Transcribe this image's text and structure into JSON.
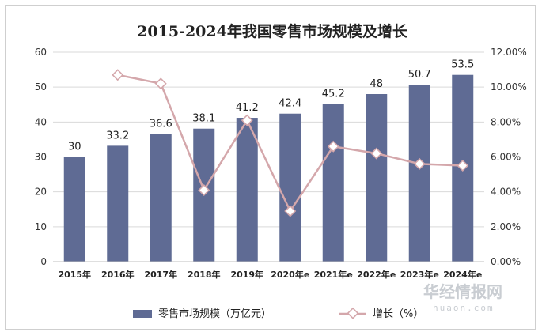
{
  "chart_data": {
    "type": "bar",
    "title": "2015-2024年我国零售市场规模及增长",
    "categories": [
      "2015年",
      "2016年",
      "2017年",
      "2018年",
      "2019年",
      "2020年e",
      "2021年e",
      "2022年e",
      "2023年e",
      "2024年e"
    ],
    "series": [
      {
        "name": "零售市场规模（万亿元）",
        "type": "bar",
        "axis": "left",
        "color": "#5f6b94",
        "values": [
          30,
          33.2,
          36.6,
          38.1,
          41.2,
          42.4,
          45.2,
          48,
          50.7,
          53.5
        ],
        "labels": [
          "30",
          "33.2",
          "36.6",
          "38.1",
          "41.2",
          "42.4",
          "45.2",
          "48",
          "50.7",
          "53.5"
        ]
      },
      {
        "name": "增长（%）",
        "type": "line",
        "axis": "right",
        "color": "#d4a7ab",
        "values": [
          null,
          10.7,
          10.2,
          4.1,
          8.1,
          2.9,
          6.6,
          6.2,
          5.6,
          5.5
        ]
      }
    ],
    "y_left": {
      "min": 0,
      "max": 60,
      "ticks": [
        "0",
        "10",
        "20",
        "30",
        "40",
        "50",
        "60"
      ]
    },
    "y_right": {
      "min": 0,
      "max": 12,
      "ticks": [
        "0.00%",
        "2.00%",
        "4.00%",
        "6.00%",
        "8.00%",
        "10.00%",
        "12.00%"
      ]
    },
    "grid": true,
    "legend": "bottom"
  },
  "watermark": {
    "cn": "华经情报网",
    "en": "huaon.com"
  }
}
